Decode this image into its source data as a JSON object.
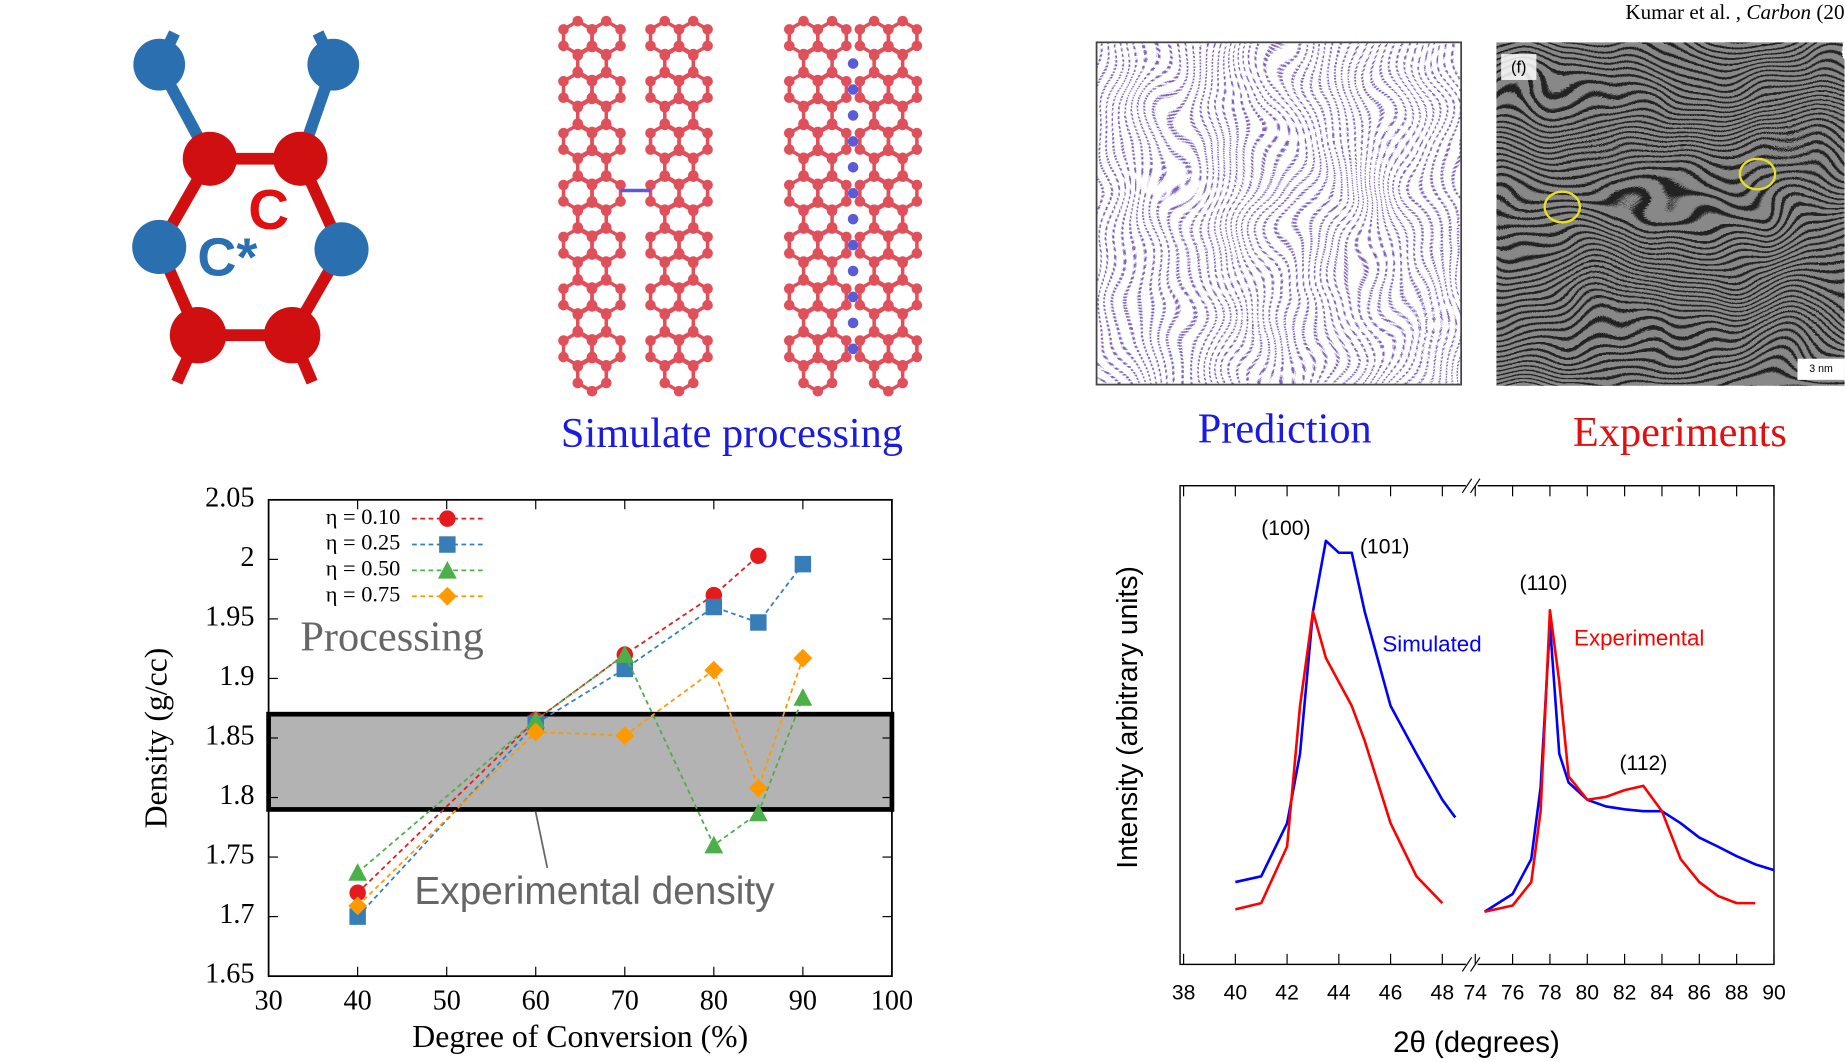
{
  "labels": {
    "c_atom": "C",
    "c_star": "C*",
    "simulate": "Simulate processing",
    "prediction": "Prediction",
    "experiments": "Experiments",
    "citation_authors": "Kumar et al. ,",
    "citation_journal": "Carbon",
    "citation_year": "(20",
    "panel_tag": "(f)",
    "scale_bar": "3 nm"
  },
  "chart_data": [
    {
      "type": "line",
      "x_label": "Degree of Conversion (%)",
      "y_label": "Density (g/cc)",
      "x": [
        40,
        60,
        70,
        80,
        85,
        90
      ],
      "series": [
        {
          "name": "η = 0.10",
          "color": "#e41a1c",
          "marker": "circle",
          "values": [
            1.72,
            1.865,
            1.92,
            1.97,
            2.003,
            null
          ]
        },
        {
          "name": "η = 0.25",
          "color": "#377eb8",
          "marker": "square",
          "values": [
            1.7,
            1.862,
            1.908,
            1.96,
            1.947,
            1.996
          ]
        },
        {
          "name": "η = 0.50",
          "color": "#4daf4a",
          "marker": "triangle",
          "values": [
            1.737,
            1.865,
            1.92,
            1.76,
            1.787,
            1.884
          ]
        },
        {
          "name": "η = 0.75",
          "color": "#ff9900",
          "marker": "diamond",
          "values": [
            1.709,
            1.855,
            1.852,
            1.907,
            1.808,
            1.917
          ]
        }
      ],
      "band": [
        1.79,
        1.87
      ],
      "band_label": "Experimental density",
      "annotation": "Processing",
      "xlim": [
        30,
        100
      ],
      "xticks": [
        30,
        40,
        50,
        60,
        70,
        80,
        90,
        100
      ],
      "ylim": [
        1.65,
        2.05
      ],
      "yticks": [
        1.65,
        1.7,
        1.75,
        1.8,
        1.85,
        1.9,
        1.95,
        2,
        2.05
      ]
    },
    {
      "type": "line",
      "x_label": "2θ (degrees)",
      "y_label": "Intensity (arbitrary units)",
      "x": [
        40,
        41,
        42,
        42.5,
        43,
        43.5,
        44,
        44.5,
        45,
        46,
        47,
        48,
        48.5,
        74.5,
        76,
        77,
        77.5,
        78,
        78.5,
        79,
        80,
        81,
        82,
        83,
        84,
        85,
        86,
        87,
        88,
        89,
        90
      ],
      "series": [
        {
          "name": "Simulated",
          "color": "#0000ff",
          "values": [
            17.2,
            18.4,
            29.5,
            44,
            73.7,
            88.5,
            86,
            86,
            73.7,
            54,
            44,
            34.4,
            30.7,
            11,
            14.7,
            22,
            37,
            71,
            44,
            38,
            34.4,
            33,
            32.4,
            32,
            32,
            29.5,
            26.5,
            24.6,
            22.6,
            20.9,
            19.7
          ]
        },
        {
          "name": "Experimental",
          "color": "#ff0000",
          "values": [
            11.5,
            12.8,
            24.6,
            54,
            73.7,
            64,
            59,
            54,
            46.7,
            29.5,
            18.4,
            12.8,
            null,
            11,
            12.3,
            17.2,
            32,
            74,
            59,
            39.3,
            34.4,
            35,
            36.4,
            37.3,
            32,
            22,
            17.2,
            14.3,
            12.8,
            12.8,
            null
          ]
        }
      ],
      "peaks": [
        "(100)",
        "(101)",
        "(110)",
        "(112)"
      ],
      "xlim_segments": [
        [
          38,
          49
        ],
        [
          74,
          90
        ]
      ],
      "xticks": [
        38,
        40,
        42,
        44,
        46,
        48,
        74,
        76,
        78,
        80,
        82,
        84,
        86,
        88,
        90
      ],
      "ylim": [
        0,
        100
      ]
    }
  ]
}
